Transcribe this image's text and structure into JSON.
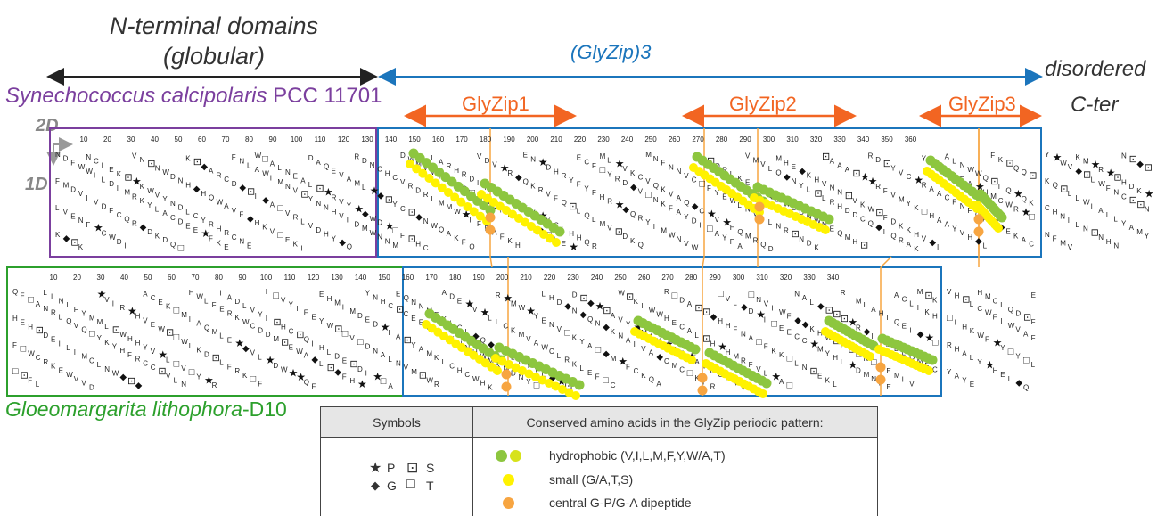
{
  "title_nterminal": "N-terminal domains",
  "title_nterminal_sub": "(globular)",
  "title_glyzip3": "(GlyZip)3",
  "title_disordered": "disordered",
  "title_cter": "C-ter",
  "species_top": {
    "name_italic": "Synechococcus calcipolaris",
    "strain": " PCC 11701"
  },
  "species_bottom": {
    "name_italic": "Gloeomargarita lithophora",
    "strain": "-D10"
  },
  "glyzip_labels": [
    "GlyZip1",
    "GlyZip2",
    "GlyZip3"
  ],
  "axis_labels": {
    "d2": "2D",
    "d1": "1D"
  },
  "top_ticks": [
    "10",
    "20",
    "30",
    "40",
    "50",
    "60",
    "70",
    "80",
    "90",
    "100",
    "110",
    "120",
    "130",
    "140",
    "150",
    "160",
    "170",
    "180",
    "190",
    "200",
    "210",
    "220",
    "230",
    "240",
    "250",
    "260",
    "270",
    "280",
    "290",
    "300",
    "310",
    "320",
    "330",
    "340",
    "350",
    "360"
  ],
  "bottom_ticks": [
    "10",
    "20",
    "30",
    "40",
    "50",
    "60",
    "70",
    "80",
    "90",
    "100",
    "110",
    "120",
    "130",
    "140",
    "150",
    "160",
    "170",
    "180",
    "190",
    "200",
    "210",
    "220",
    "230",
    "240",
    "250",
    "260",
    "270",
    "280",
    "290",
    "300",
    "310",
    "320",
    "330",
    "340"
  ],
  "legend": {
    "symbols_header": "Symbols",
    "conserved_header": "Conserved amino acids in the GlyZip periodic pattern:",
    "symbol_items": [
      {
        "glyph": "★",
        "label": "P"
      },
      {
        "glyph": "◆",
        "label": "G"
      },
      {
        "glyph": "⊡",
        "label": "S"
      },
      {
        "glyph": "□",
        "label": "T"
      }
    ],
    "conserved_items": [
      {
        "label": "hydrophobic (V,I,L,M,F,Y,W/A,T)",
        "colors": [
          "#8dc63f",
          "#d7e21a"
        ]
      },
      {
        "label": "small (G/A,T,S)",
        "colors": [
          "#fff200"
        ]
      },
      {
        "label": "central G-P/G-A dipeptide",
        "colors": [
          "#f7a541"
        ]
      }
    ]
  },
  "colors": {
    "purple": "#7b3f9e",
    "blue": "#1b75bc",
    "green": "#2ca02c",
    "orange": "#f26522",
    "hydrophobic": "#8dc63f",
    "small": "#fff200",
    "dipeptide": "#f7a541"
  }
}
